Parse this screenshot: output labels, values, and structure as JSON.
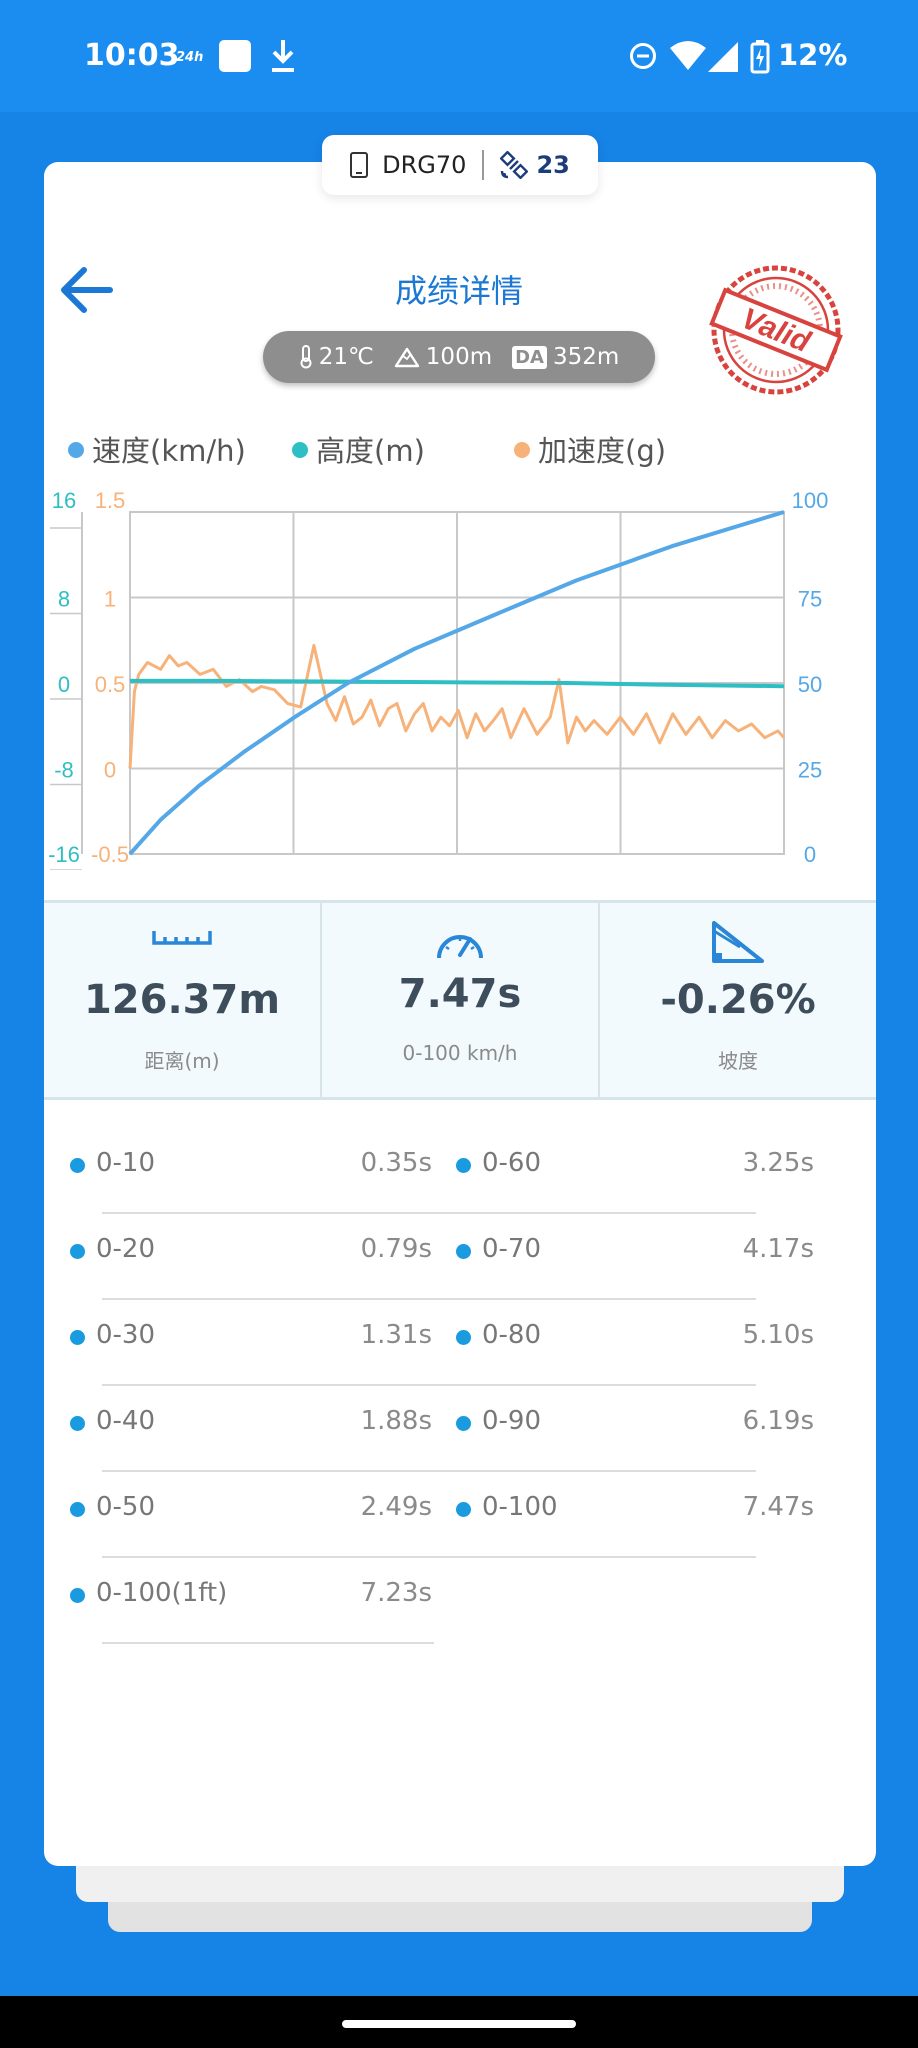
{
  "status_bar": {
    "time": "10:03",
    "clock_format": "24h",
    "battery": "12%"
  },
  "device": {
    "name": "DRG70",
    "satellites": "23"
  },
  "header": {
    "title": "成绩详情",
    "stamp": "Valid"
  },
  "conditions": {
    "temperature": "21℃",
    "altitude": "100m",
    "da_label": "DA",
    "density_altitude": "352m"
  },
  "chart_data": {
    "type": "line",
    "legend": [
      "速度(km/h)",
      "高度(m)",
      "加速度(g)"
    ],
    "left_axis_altitude_ticks": [
      "16",
      "8",
      "0",
      "-8",
      "-16"
    ],
    "left_axis_accel_ticks": [
      "1.5",
      "1",
      "0.5",
      "0",
      "-0.5"
    ],
    "right_axis_speed_ticks": [
      "100",
      "75",
      "50",
      "25",
      "0"
    ],
    "speed_ylim": [
      0,
      100
    ],
    "altitude_ylim": [
      -16,
      16
    ],
    "accel_ylim": [
      -0.5,
      1.5
    ],
    "x_range": [
      0,
      7.47
    ],
    "grid": true,
    "colors": {
      "speed": "#55a8e8",
      "altitude": "#2ebfc4",
      "accel": "#f7b27a"
    },
    "series": [
      {
        "name": "速度(km/h)",
        "x": [
          0,
          0.35,
          0.79,
          1.31,
          1.88,
          2.49,
          3.25,
          4.17,
          5.1,
          6.19,
          7.47
        ],
        "values": [
          0,
          10,
          20,
          30,
          40,
          50,
          60,
          70,
          80,
          90,
          100
        ]
      },
      {
        "name": "高度(m)",
        "x": [
          0,
          1.0,
          2.0,
          3.0,
          4.0,
          5.0,
          6.0,
          7.0,
          7.47
        ],
        "values": [
          0.2,
          0.2,
          0.15,
          0.1,
          0.05,
          0.0,
          -0.15,
          -0.25,
          -0.3
        ]
      },
      {
        "name": "加速度(g)",
        "x": [
          0,
          0.05,
          0.1,
          0.2,
          0.35,
          0.45,
          0.55,
          0.65,
          0.8,
          0.95,
          1.1,
          1.25,
          1.4,
          1.5,
          1.65,
          1.8,
          1.95,
          2.1,
          2.25,
          2.35,
          2.45,
          2.55,
          2.65,
          2.75,
          2.85,
          2.95,
          3.05,
          3.15,
          3.25,
          3.35,
          3.45,
          3.55,
          3.65,
          3.75,
          3.85,
          3.95,
          4.05,
          4.15,
          4.25,
          4.35,
          4.5,
          4.65,
          4.8,
          4.9,
          5.0,
          5.1,
          5.2,
          5.3,
          5.45,
          5.6,
          5.75,
          5.9,
          6.05,
          6.2,
          6.35,
          6.5,
          6.65,
          6.8,
          6.95,
          7.1,
          7.25,
          7.4,
          7.47
        ],
        "values": [
          0.0,
          0.45,
          0.55,
          0.62,
          0.58,
          0.66,
          0.6,
          0.62,
          0.55,
          0.58,
          0.48,
          0.52,
          0.45,
          0.48,
          0.46,
          0.38,
          0.36,
          0.72,
          0.38,
          0.28,
          0.42,
          0.26,
          0.3,
          0.4,
          0.25,
          0.35,
          0.38,
          0.22,
          0.32,
          0.38,
          0.22,
          0.3,
          0.25,
          0.34,
          0.18,
          0.32,
          0.22,
          0.28,
          0.35,
          0.18,
          0.35,
          0.2,
          0.3,
          0.52,
          0.15,
          0.3,
          0.22,
          0.28,
          0.2,
          0.3,
          0.2,
          0.32,
          0.15,
          0.32,
          0.2,
          0.3,
          0.18,
          0.28,
          0.22,
          0.26,
          0.18,
          0.22,
          0.18
        ]
      }
    ]
  },
  "stats": [
    {
      "value": "126.37m",
      "label": "距离(m)",
      "icon": "ruler-icon"
    },
    {
      "value": "7.47s",
      "label": "0-100 km/h",
      "icon": "speedometer-icon"
    },
    {
      "value": "-0.26%",
      "label": "坡度",
      "icon": "slope-icon"
    }
  ],
  "splits": [
    {
      "range": "0-10",
      "time": "0.35s"
    },
    {
      "range": "0-20",
      "time": "0.79s"
    },
    {
      "range": "0-30",
      "time": "1.31s"
    },
    {
      "range": "0-40",
      "time": "1.88s"
    },
    {
      "range": "0-50",
      "time": "2.49s"
    },
    {
      "range": "0-100(1ft)",
      "time": "7.23s"
    },
    {
      "range": "0-60",
      "time": "3.25s"
    },
    {
      "range": "0-70",
      "time": "4.17s"
    },
    {
      "range": "0-80",
      "time": "5.10s"
    },
    {
      "range": "0-90",
      "time": "6.19s"
    },
    {
      "range": "0-100",
      "time": "7.47s"
    }
  ]
}
